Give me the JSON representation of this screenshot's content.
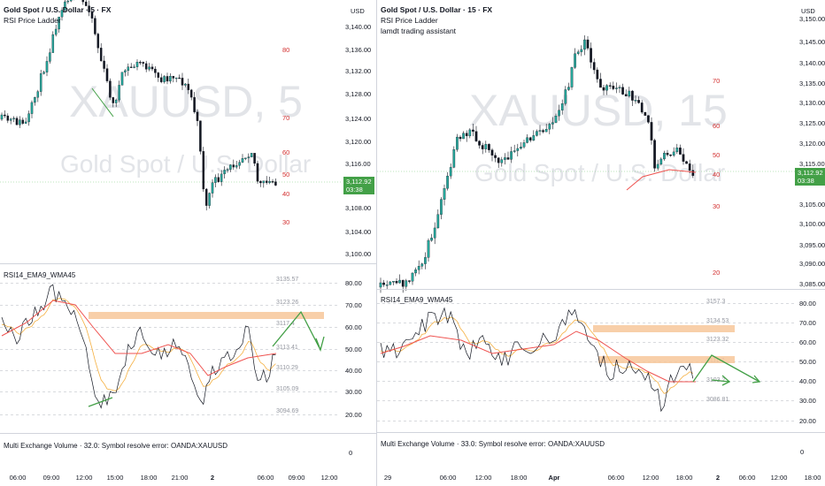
{
  "left": {
    "title": "Gold Spot / U.S. Dollar · 5 · FX",
    "indicator": "RSI Price Ladder",
    "watermark_symbol": "XAUUSD, 5",
    "watermark_name": "Gold Spot / U.S. Dollar",
    "currency": "USD",
    "price_badge": "3,112.92",
    "countdown": "03:38",
    "price_ticks": [
      "3,140.00",
      "3,136.00",
      "3,132.00",
      "3,128.00",
      "3,124.00",
      "3,120.00",
      "3,116.00",
      "3,108.00",
      "3,104.00",
      "3,100.00"
    ],
    "ladder_labels": [
      "80",
      "70",
      "60",
      "50",
      "40",
      "30"
    ],
    "rsi_title": "RSI14_EMA9_WMA45",
    "rsi_ticks": [
      "80.00",
      "70.00",
      "60.00",
      "50.00",
      "40.00",
      "30.00",
      "20.00"
    ],
    "rsi_price_labels": [
      "3135.57",
      "3123.26",
      "3117.4",
      "3113.41",
      "3110.29",
      "3105.09",
      "3094.69"
    ],
    "volume_label": "Multi Exchange Volume · 32.0: Symbol resolve error: OANDA:XAUUSD",
    "volume_zero": "0",
    "time_ticks": [
      "06:00",
      "09:00",
      "12:00",
      "15:00",
      "18:00",
      "21:00",
      "2",
      "06:00",
      "09:00",
      "12:00"
    ]
  },
  "right": {
    "title": "Gold Spot / U.S. Dollar · 15 · FX",
    "indicator": "RSI Price Ladder",
    "indicator2": "lamdt trading assistant",
    "watermark_symbol": "XAUUSD, 15",
    "watermark_name": "Gold Spot / U.S. Dollar",
    "currency": "USD",
    "price_badge": "3,112.92",
    "countdown": "03:38",
    "price_ticks": [
      "3,150.00",
      "3,145.00",
      "3,140.00",
      "3,135.00",
      "3,130.00",
      "3,125.00",
      "3,120.00",
      "3,115.00",
      "3,105.00",
      "3,100.00",
      "3,095.00",
      "3,090.00",
      "3,085.00"
    ],
    "ladder_labels": [
      "70",
      "60",
      "50",
      "40",
      "30",
      "20"
    ],
    "rsi_title": "RSI14_EMA9_WMA45",
    "rsi_ticks": [
      "80.00",
      "70.00",
      "60.00",
      "50.00",
      "40.00",
      "30.00",
      "20.00"
    ],
    "rsi_price_labels": [
      "3157.3",
      "3134.53",
      "3123.32",
      "3111.7",
      "3103.2",
      "3086.81"
    ],
    "volume_label": "Multi Exchange Volume · 33.0: Symbol resolve error: OANDA:XAUUSD",
    "volume_zero": "0",
    "time_ticks": [
      "29",
      "06:00",
      "12:00",
      "18:00",
      "Apr",
      "06:00",
      "12:00",
      "18:00",
      "2",
      "06:00",
      "12:00",
      "18:00"
    ]
  },
  "colors": {
    "up": "#26a69a",
    "down": "#ef5350",
    "badge": "#43a047",
    "zone": "#f7c79a",
    "arrow": "#43a047",
    "ladder": "#d32f2f"
  }
}
